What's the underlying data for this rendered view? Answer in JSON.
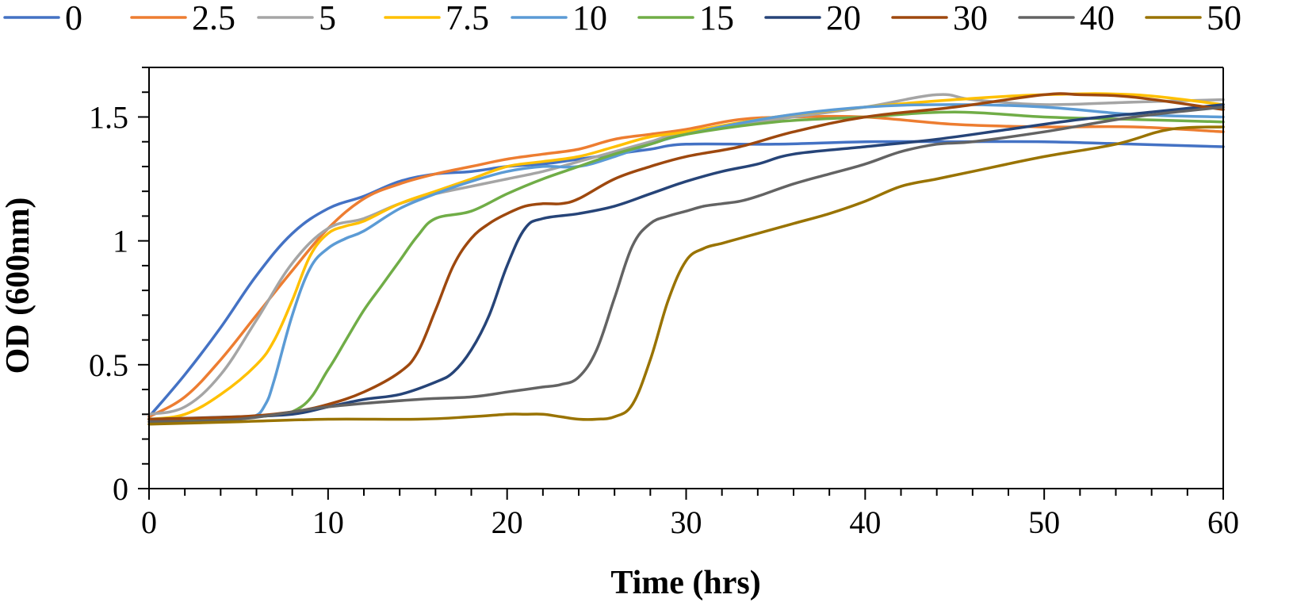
{
  "chart_data": {
    "type": "line",
    "title": "",
    "xlabel": "Time (hrs)",
    "ylabel": "OD (600nm)",
    "xlim": [
      0,
      60
    ],
    "ylim": [
      0,
      1.7
    ],
    "xticks": [
      0,
      10,
      20,
      30,
      40,
      50,
      60
    ],
    "xtick_labels": [
      "0",
      "10",
      "20",
      "30",
      "40",
      "50",
      "60"
    ],
    "yticks": [
      0,
      0.5,
      1,
      1.5
    ],
    "ytick_labels": [
      "0",
      "0.5",
      "1",
      "1.5"
    ],
    "grid": false,
    "legend_position": "top",
    "series": [
      {
        "name": "0",
        "color": "#4472C4",
        "x": [
          0,
          2,
          4,
          6,
          8,
          10,
          12,
          14,
          16,
          18,
          20,
          22,
          24,
          26,
          28,
          30,
          35,
          40,
          45,
          50,
          55,
          60
        ],
        "y": [
          0.29,
          0.46,
          0.65,
          0.86,
          1.03,
          1.13,
          1.18,
          1.24,
          1.27,
          1.28,
          1.3,
          1.31,
          1.33,
          1.35,
          1.37,
          1.39,
          1.39,
          1.4,
          1.4,
          1.4,
          1.39,
          1.38
        ]
      },
      {
        "name": "2.5",
        "color": "#ED7D31",
        "x": [
          0,
          2,
          4,
          6,
          8,
          10,
          12,
          14,
          16,
          18,
          20,
          22,
          24,
          26,
          28,
          30,
          33,
          36,
          40,
          45,
          50,
          55,
          60
        ],
        "y": [
          0.29,
          0.37,
          0.52,
          0.7,
          0.88,
          1.05,
          1.17,
          1.23,
          1.27,
          1.3,
          1.33,
          1.35,
          1.37,
          1.41,
          1.43,
          1.45,
          1.49,
          1.5,
          1.5,
          1.47,
          1.46,
          1.46,
          1.44
        ]
      },
      {
        "name": "5",
        "color": "#A5A5A5",
        "x": [
          0,
          2,
          4,
          6,
          8,
          10,
          12,
          14,
          16,
          18,
          20,
          22,
          24,
          26,
          28,
          30,
          35,
          40,
          44,
          46,
          50,
          55,
          60
        ],
        "y": [
          0.3,
          0.33,
          0.46,
          0.68,
          0.91,
          1.05,
          1.09,
          1.15,
          1.19,
          1.22,
          1.25,
          1.28,
          1.32,
          1.36,
          1.4,
          1.44,
          1.49,
          1.54,
          1.59,
          1.57,
          1.55,
          1.56,
          1.57
        ]
      },
      {
        "name": "7.5",
        "color": "#FFC000",
        "x": [
          0,
          2,
          4,
          6,
          7,
          8,
          9,
          10,
          11,
          12,
          14,
          16,
          18,
          20,
          22,
          24,
          26,
          28,
          30,
          35,
          40,
          45,
          50,
          55,
          60
        ],
        "y": [
          0.28,
          0.3,
          0.38,
          0.5,
          0.6,
          0.76,
          0.94,
          1.03,
          1.06,
          1.08,
          1.15,
          1.2,
          1.25,
          1.3,
          1.32,
          1.34,
          1.38,
          1.42,
          1.44,
          1.5,
          1.54,
          1.57,
          1.59,
          1.59,
          1.55
        ]
      },
      {
        "name": "10",
        "color": "#5B9BD5",
        "x": [
          0,
          4,
          5.8,
          6.5,
          7,
          8,
          9,
          10,
          11,
          12,
          14,
          16,
          18,
          20,
          22,
          24,
          26,
          28,
          30,
          35,
          40,
          45,
          50,
          55,
          60
        ],
        "y": [
          0.28,
          0.28,
          0.29,
          0.34,
          0.44,
          0.7,
          0.89,
          0.97,
          1.01,
          1.04,
          1.13,
          1.19,
          1.24,
          1.28,
          1.3,
          1.3,
          1.34,
          1.39,
          1.43,
          1.5,
          1.54,
          1.55,
          1.54,
          1.51,
          1.5
        ]
      },
      {
        "name": "15",
        "color": "#70AD47",
        "x": [
          0,
          6,
          8.5,
          10,
          11,
          12,
          13,
          14,
          15,
          16,
          18,
          20,
          22,
          24,
          26,
          28,
          30,
          35,
          40,
          45,
          50,
          55,
          60
        ],
        "y": [
          0.28,
          0.29,
          0.33,
          0.48,
          0.6,
          0.72,
          0.82,
          0.92,
          1.02,
          1.09,
          1.12,
          1.19,
          1.25,
          1.3,
          1.35,
          1.39,
          1.43,
          1.48,
          1.5,
          1.52,
          1.5,
          1.49,
          1.48
        ]
      },
      {
        "name": "20",
        "color": "#264478",
        "x": [
          0,
          5,
          8,
          10,
          12,
          14,
          16,
          17,
          18,
          19,
          20,
          21,
          22,
          24,
          26,
          28,
          30,
          32,
          34,
          36,
          40,
          44,
          48,
          52,
          56,
          60
        ],
        "y": [
          0.28,
          0.29,
          0.3,
          0.33,
          0.36,
          0.38,
          0.43,
          0.47,
          0.56,
          0.7,
          0.9,
          1.05,
          1.09,
          1.11,
          1.14,
          1.19,
          1.24,
          1.28,
          1.31,
          1.35,
          1.38,
          1.41,
          1.45,
          1.49,
          1.52,
          1.55
        ]
      },
      {
        "name": "30",
        "color": "#9E480E",
        "x": [
          0,
          5,
          8,
          10,
          12,
          14,
          15,
          16,
          17,
          18,
          19,
          20,
          21,
          22,
          23,
          24,
          26,
          28,
          30,
          33,
          36,
          40,
          45,
          50,
          52,
          55,
          60
        ],
        "y": [
          0.28,
          0.29,
          0.31,
          0.34,
          0.39,
          0.47,
          0.55,
          0.72,
          0.9,
          1.01,
          1.07,
          1.11,
          1.14,
          1.15,
          1.15,
          1.17,
          1.25,
          1.3,
          1.34,
          1.38,
          1.44,
          1.5,
          1.54,
          1.59,
          1.59,
          1.58,
          1.53
        ]
      },
      {
        "name": "40",
        "color": "#636363",
        "x": [
          0,
          5,
          10,
          15,
          18,
          20,
          21,
          22,
          23,
          24,
          25,
          26,
          27,
          28,
          29,
          30,
          31,
          32,
          33,
          34,
          36,
          38,
          40,
          42,
          44,
          46,
          50,
          55,
          60
        ],
        "y": [
          0.27,
          0.28,
          0.33,
          0.36,
          0.37,
          0.39,
          0.4,
          0.41,
          0.42,
          0.45,
          0.56,
          0.77,
          0.98,
          1.07,
          1.1,
          1.12,
          1.14,
          1.15,
          1.16,
          1.18,
          1.23,
          1.27,
          1.31,
          1.36,
          1.39,
          1.4,
          1.44,
          1.5,
          1.54
        ]
      },
      {
        "name": "50",
        "color": "#997300",
        "x": [
          0,
          5,
          10,
          15,
          18,
          20,
          21,
          22,
          23,
          24,
          25,
          26,
          27,
          28,
          29,
          30,
          31,
          32,
          33,
          34,
          36,
          38,
          40,
          42,
          44,
          46,
          50,
          54,
          57,
          60
        ],
        "y": [
          0.26,
          0.27,
          0.28,
          0.28,
          0.29,
          0.3,
          0.3,
          0.3,
          0.29,
          0.28,
          0.28,
          0.29,
          0.34,
          0.52,
          0.76,
          0.92,
          0.97,
          0.99,
          1.01,
          1.03,
          1.07,
          1.11,
          1.16,
          1.22,
          1.25,
          1.28,
          1.34,
          1.39,
          1.45,
          1.46
        ]
      }
    ]
  }
}
